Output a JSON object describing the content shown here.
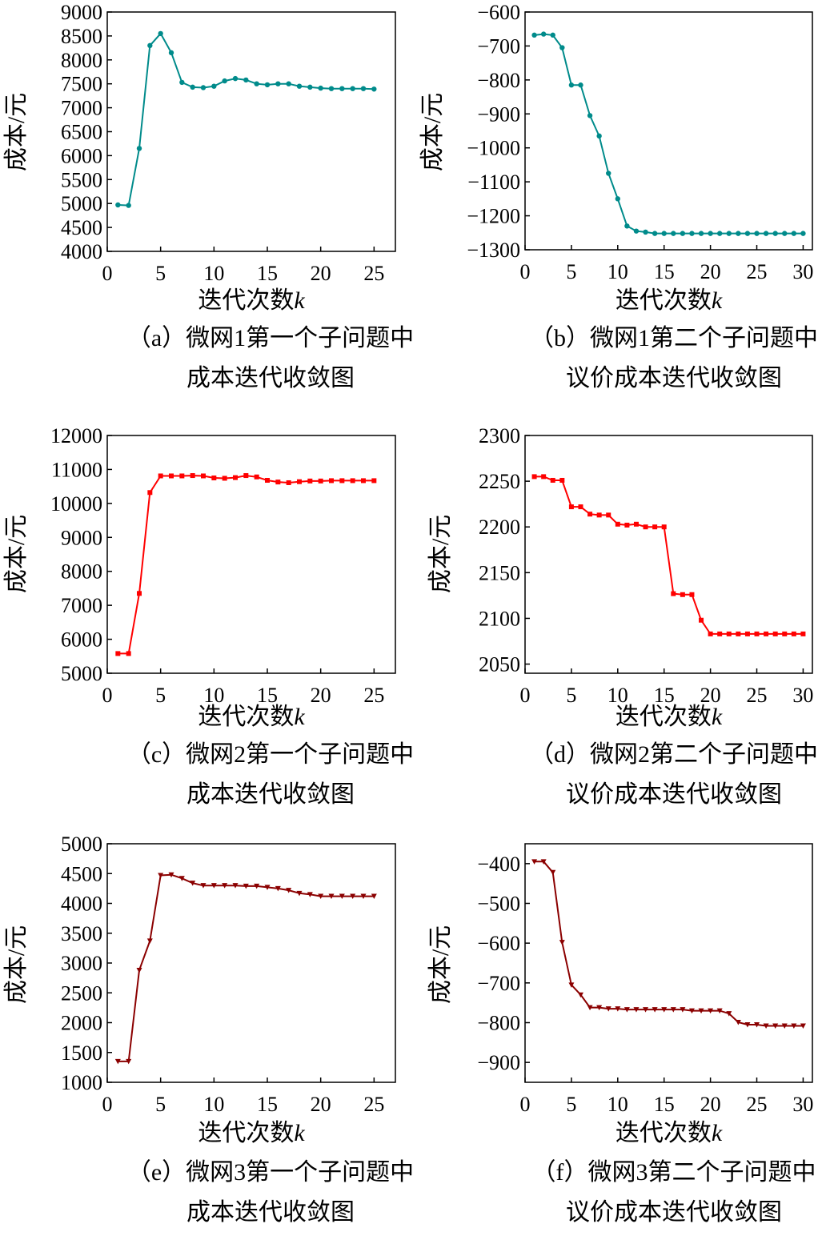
{
  "chart_data": [
    {
      "type": "line",
      "xlabel": "迭代次数",
      "xlabel_var": "k",
      "ylabel": "成本/元",
      "caption_lines": [
        "（a）微网1第一个子问题中",
        "成本迭代收敛图"
      ],
      "xlim": [
        0,
        27
      ],
      "ylim": [
        4000,
        9000
      ],
      "xticks": [
        0,
        5,
        10,
        15,
        20,
        25
      ],
      "yticks": [
        4000,
        4500,
        5000,
        5500,
        6000,
        6500,
        7000,
        7500,
        8000,
        8500,
        9000
      ],
      "marker": "circle",
      "color": "#008b8b",
      "series": [
        {
          "x": [
            1,
            2,
            3,
            4,
            5,
            6,
            7,
            8,
            9,
            10,
            11,
            12,
            13,
            14,
            15,
            16,
            17,
            18,
            19,
            20,
            21,
            22,
            23,
            24,
            25
          ],
          "values": [
            4970,
            4960,
            6150,
            8300,
            8550,
            8150,
            7530,
            7430,
            7420,
            7450,
            7560,
            7610,
            7580,
            7500,
            7480,
            7500,
            7500,
            7450,
            7430,
            7410,
            7400,
            7400,
            7400,
            7400,
            7390
          ]
        }
      ]
    },
    {
      "type": "line",
      "xlabel": "迭代次数",
      "xlabel_var": "k",
      "ylabel": "成本/元",
      "caption_lines": [
        "（b）微网1第二个子问题中",
        "议价成本迭代收敛图"
      ],
      "xlim": [
        0,
        31
      ],
      "ylim": [
        -1300,
        -600
      ],
      "xticks": [
        0,
        5,
        10,
        15,
        20,
        25,
        30
      ],
      "yticks": [
        -1300,
        -1200,
        -1100,
        -1000,
        -900,
        -800,
        -700,
        -600
      ],
      "marker": "circle",
      "color": "#008b8b",
      "series": [
        {
          "x": [
            1,
            2,
            3,
            4,
            5,
            6,
            7,
            8,
            9,
            10,
            11,
            12,
            13,
            14,
            15,
            16,
            17,
            18,
            19,
            20,
            21,
            22,
            23,
            24,
            25,
            26,
            27,
            28,
            29,
            30
          ],
          "values": [
            -668,
            -665,
            -668,
            -705,
            -815,
            -815,
            -905,
            -965,
            -1075,
            -1150,
            -1230,
            -1245,
            -1248,
            -1252,
            -1252,
            -1252,
            -1252,
            -1252,
            -1252,
            -1252,
            -1252,
            -1252,
            -1252,
            -1252,
            -1252,
            -1252,
            -1252,
            -1252,
            -1252,
            -1252
          ]
        }
      ]
    },
    {
      "type": "line",
      "xlabel": "迭代次数",
      "xlabel_var": "k",
      "ylabel": "成本/元",
      "caption_lines": [
        "（c）微网2第一个子问题中",
        "成本迭代收敛图"
      ],
      "xlim": [
        0,
        27
      ],
      "ylim": [
        5000,
        12000
      ],
      "xticks": [
        0,
        5,
        10,
        15,
        20,
        25
      ],
      "yticks": [
        5000,
        6000,
        7000,
        8000,
        9000,
        10000,
        11000,
        12000
      ],
      "marker": "square",
      "color": "#ff0000",
      "series": [
        {
          "x": [
            1,
            2,
            3,
            4,
            5,
            6,
            7,
            8,
            9,
            10,
            11,
            12,
            13,
            14,
            15,
            16,
            17,
            18,
            19,
            20,
            21,
            22,
            23,
            24,
            25
          ],
          "values": [
            5580,
            5580,
            7350,
            10320,
            10810,
            10810,
            10810,
            10820,
            10810,
            10750,
            10740,
            10760,
            10820,
            10780,
            10680,
            10630,
            10610,
            10640,
            10660,
            10660,
            10670,
            10670,
            10670,
            10670,
            10670
          ]
        }
      ]
    },
    {
      "type": "line",
      "xlabel": "迭代次数",
      "xlabel_var": "k",
      "ylabel": "成本/元",
      "caption_lines": [
        "（d）微网2第二个子问题中",
        "议价成本迭代收敛图"
      ],
      "xlim": [
        0,
        31
      ],
      "ylim": [
        2040,
        2300
      ],
      "xticks": [
        0,
        5,
        10,
        15,
        20,
        25,
        30
      ],
      "yticks": [
        2050,
        2100,
        2150,
        2200,
        2250,
        2300
      ],
      "marker": "square",
      "color": "#ff0000",
      "series": [
        {
          "x": [
            1,
            2,
            3,
            4,
            5,
            6,
            7,
            8,
            9,
            10,
            11,
            12,
            13,
            14,
            15,
            16,
            17,
            18,
            19,
            20,
            21,
            22,
            23,
            24,
            25,
            26,
            27,
            28,
            29,
            30
          ],
          "values": [
            2255,
            2255,
            2251,
            2251,
            2222,
            2222,
            2214,
            2213,
            2213,
            2203,
            2202,
            2203,
            2200,
            2200,
            2200,
            2127,
            2126,
            2126,
            2098,
            2083,
            2083,
            2083,
            2083,
            2083,
            2083,
            2083,
            2083,
            2083,
            2083,
            2083
          ]
        }
      ]
    },
    {
      "type": "line",
      "xlabel": "迭代次数",
      "xlabel_var": "k",
      "ylabel": "成本/元",
      "caption_lines": [
        "（e）微网3第一个子问题中",
        "成本迭代收敛图"
      ],
      "xlim": [
        0,
        27
      ],
      "ylim": [
        1000,
        5000
      ],
      "xticks": [
        0,
        5,
        10,
        15,
        20,
        25
      ],
      "yticks": [
        1000,
        1500,
        2000,
        2500,
        3000,
        3500,
        4000,
        4500,
        5000
      ],
      "marker": "triangle-down",
      "color": "#8b0000",
      "series": [
        {
          "x": [
            1,
            2,
            3,
            4,
            5,
            6,
            7,
            8,
            9,
            10,
            11,
            12,
            13,
            14,
            15,
            16,
            17,
            18,
            19,
            20,
            21,
            22,
            23,
            24,
            25
          ],
          "values": [
            1350,
            1350,
            2880,
            3370,
            4470,
            4480,
            4420,
            4340,
            4300,
            4300,
            4300,
            4300,
            4290,
            4290,
            4270,
            4250,
            4220,
            4170,
            4150,
            4120,
            4120,
            4120,
            4120,
            4120,
            4120
          ]
        }
      ]
    },
    {
      "type": "line",
      "xlabel": "迭代次数",
      "xlabel_var": "k",
      "ylabel": "成本/元",
      "caption_lines": [
        "（f）微网3第二个子问题中",
        "议价成本迭代收敛图"
      ],
      "xlim": [
        0,
        31
      ],
      "ylim": [
        -950,
        -350
      ],
      "xticks": [
        0,
        5,
        10,
        15,
        20,
        25,
        30
      ],
      "yticks": [
        -900,
        -800,
        -700,
        -600,
        -500,
        -400
      ],
      "marker": "triangle-down",
      "color": "#8b0000",
      "series": [
        {
          "x": [
            1,
            2,
            3,
            4,
            5,
            6,
            7,
            8,
            9,
            10,
            11,
            12,
            13,
            14,
            15,
            16,
            17,
            18,
            19,
            20,
            21,
            22,
            23,
            24,
            25,
            26,
            27,
            28,
            29,
            30
          ],
          "values": [
            -395,
            -395,
            -422,
            -598,
            -705,
            -730,
            -762,
            -762,
            -765,
            -765,
            -767,
            -767,
            -767,
            -767,
            -767,
            -767,
            -767,
            -770,
            -770,
            -770,
            -770,
            -777,
            -799,
            -805,
            -805,
            -808,
            -808,
            -808,
            -808,
            -808
          ]
        }
      ]
    }
  ]
}
